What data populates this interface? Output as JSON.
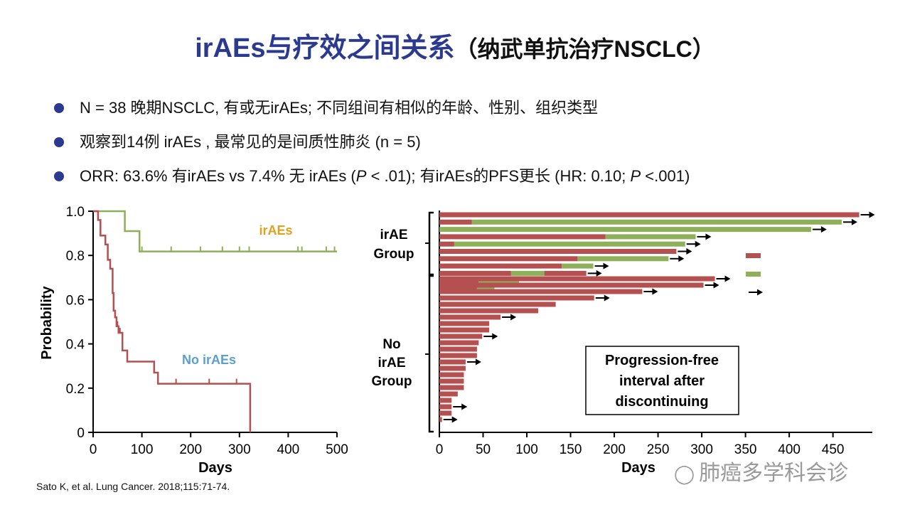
{
  "title": {
    "main": "irAEs与疗效之间关系",
    "sub": "（纳武单抗治疗NSCLC）"
  },
  "bullets": [
    {
      "text": "N = 38 晚期NSCLC, 有或无irAEs; 不同组间有相似的年龄、性别、组织类型"
    },
    {
      "text": "观察到14例 irAEs , 最常见的是间质性肺炎 (n = 5)"
    },
    {
      "p1": "ORR: 63.6% 有irAEs vs 7.4% 无 irAEs (",
      "p_italic": "P",
      "p2": " < .01); 有irAEs的PFS更长 (HR: 0.10; ",
      "p_italic2": "P",
      "p3": " <.001)"
    }
  ],
  "citation": "Sato K, et al. Lung Cancer. 2018;115:71-74.",
  "watermark": {
    "icon": "wechat-icon",
    "text": "肺癌多学科会诊"
  },
  "colors": {
    "title": "#2b3a8f",
    "iraes_line": "#8fb05a",
    "no_iraes_line": "#b55050",
    "iraes_label": "#e0a020",
    "no_iraes_label": "#5a9fcf"
  },
  "chart_data": [
    {
      "type": "line",
      "title": "",
      "xlabel": "Days",
      "ylabel": "Probability",
      "xlim": [
        0,
        500
      ],
      "ylim": [
        0,
        1
      ],
      "xticks": [
        "0",
        "100",
        "200",
        "300",
        "400",
        "500"
      ],
      "yticks": [
        "0",
        "0.2",
        "0.4",
        "0.6",
        "0.8",
        "1.0"
      ],
      "series": [
        {
          "name": "irAEs",
          "color": "#8fb05a",
          "steps": [
            [
              0,
              1.0
            ],
            [
              65,
              1.0
            ],
            [
              65,
              0.91
            ],
            [
              95,
              0.91
            ],
            [
              95,
              0.818
            ],
            [
              500,
              0.818
            ]
          ],
          "censor": [
            100,
            160,
            220,
            265,
            300,
            320,
            420,
            428,
            478,
            495
          ]
        },
        {
          "name": "No irAEs",
          "color": "#b55050",
          "steps": [
            [
              0,
              1.0
            ],
            [
              10,
              1.0
            ],
            [
              10,
              0.96
            ],
            [
              15,
              0.96
            ],
            [
              15,
              0.89
            ],
            [
              25,
              0.89
            ],
            [
              25,
              0.85
            ],
            [
              30,
              0.85
            ],
            [
              30,
              0.78
            ],
            [
              35,
              0.78
            ],
            [
              35,
              0.74
            ],
            [
              40,
              0.74
            ],
            [
              40,
              0.63
            ],
            [
              42,
              0.63
            ],
            [
              42,
              0.55
            ],
            [
              45,
              0.55
            ],
            [
              45,
              0.52
            ],
            [
              48,
              0.52
            ],
            [
              48,
              0.48
            ],
            [
              52,
              0.48
            ],
            [
              52,
              0.45
            ],
            [
              60,
              0.45
            ],
            [
              60,
              0.37
            ],
            [
              70,
              0.37
            ],
            [
              70,
              0.32
            ],
            [
              125,
              0.32
            ],
            [
              125,
              0.27
            ],
            [
              133,
              0.27
            ],
            [
              133,
              0.22
            ],
            [
              322,
              0.22
            ],
            [
              322,
              0
            ]
          ],
          "censor": [
            50,
            55,
            170,
            238,
            294,
            322
          ]
        }
      ],
      "annotations": [
        "irAEs",
        "No irAEs"
      ]
    },
    {
      "type": "bar",
      "title": "Progression-free interval after discontinuing",
      "xlabel": "Days",
      "xlim": [
        0,
        495
      ],
      "xticks": [
        "0",
        "50",
        "100",
        "150",
        "200",
        "250",
        "300",
        "350",
        "400",
        "450"
      ],
      "group_labels": [
        "irAE Group",
        "No irAE Group"
      ],
      "legend": [
        {
          "swatch": "red",
          "label": ""
        },
        {
          "swatch": "green",
          "label": ""
        },
        {
          "swatch": "arrow",
          "label": ""
        }
      ],
      "irae_bars": [
        {
          "segments": [
            [
              "red",
              0,
              480
            ]
          ],
          "arrow": true
        },
        {
          "segments": [
            [
              "red",
              0,
              37
            ],
            [
              "green",
              37,
              460
            ]
          ],
          "arrow": true
        },
        {
          "segments": [
            [
              "green",
              0,
              425
            ]
          ],
          "arrow": true
        },
        {
          "segments": [
            [
              "red",
              0,
              190
            ],
            [
              "green",
              190,
              293
            ]
          ],
          "arrow": true
        },
        {
          "segments": [
            [
              "red",
              0,
              17
            ],
            [
              "green",
              17,
              281
            ]
          ],
          "arrow": true
        },
        {
          "segments": [
            [
              "red",
              0,
              271
            ]
          ],
          "arrow": true
        },
        {
          "segments": [
            [
              "red",
              0,
              158
            ],
            [
              "green",
              158,
              262
            ]
          ],
          "arrow": true
        },
        {
          "segments": [
            [
              "red",
              0,
              140
            ],
            [
              "green",
              140,
              176
            ]
          ],
          "arrow": true
        },
        {
          "segments": [
            [
              "red",
              0,
              82
            ],
            [
              "green",
              82,
              120
            ],
            [
              "red",
              120,
              168
            ]
          ],
          "arrow": true
        },
        {
          "segments": [
            [
              "red",
              0,
              45
            ],
            [
              "green",
              45,
              91
            ]
          ],
          "arrow": false
        },
        {
          "segments": [
            [
              "red",
              0,
              43
            ],
            [
              "green",
              43,
              63
            ]
          ],
          "arrow": false
        }
      ],
      "no_irae_bars": [
        {
          "value": 315,
          "arrow": true
        },
        {
          "value": 302,
          "arrow": true
        },
        {
          "value": 232,
          "arrow": true
        },
        {
          "value": 177,
          "arrow": true
        },
        {
          "value": 133,
          "arrow": false
        },
        {
          "value": 113,
          "arrow": false
        },
        {
          "value": 70,
          "arrow": true
        },
        {
          "value": 57,
          "arrow": false
        },
        {
          "value": 57,
          "arrow": false
        },
        {
          "value": 49,
          "arrow": true
        },
        {
          "value": 45,
          "arrow": false
        },
        {
          "value": 43,
          "arrow": false
        },
        {
          "value": 43,
          "arrow": false
        },
        {
          "value": 30,
          "arrow": true
        },
        {
          "value": 30,
          "arrow": false
        },
        {
          "value": 28,
          "arrow": false
        },
        {
          "value": 28,
          "arrow": false
        },
        {
          "value": 28,
          "arrow": false
        },
        {
          "value": 21,
          "arrow": false
        },
        {
          "value": 14,
          "arrow": false
        },
        {
          "value": 14,
          "arrow": true
        },
        {
          "value": 14,
          "arrow": false
        },
        {
          "value": 3,
          "arrow": true
        }
      ]
    }
  ]
}
